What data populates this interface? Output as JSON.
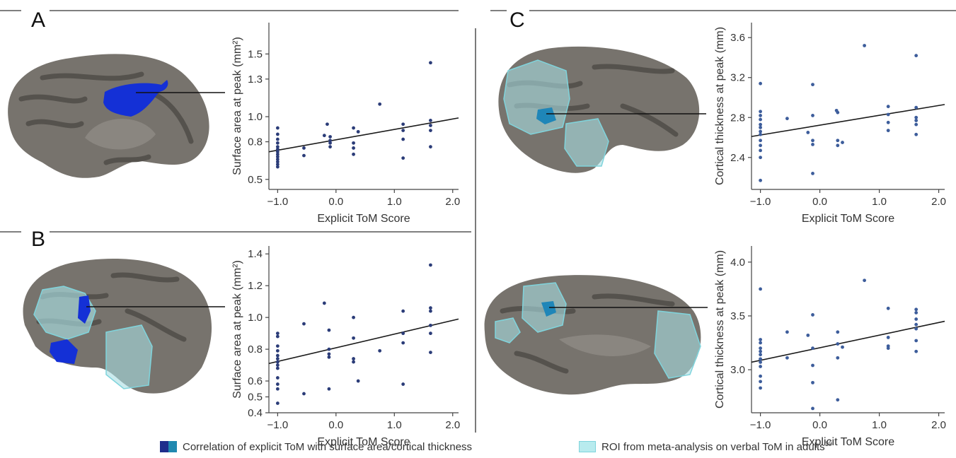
{
  "panels": {
    "a": "A",
    "b": "B",
    "c": "C"
  },
  "colors": {
    "dot": "#2b3c78",
    "dot_c": "#3d5d9b",
    "fit": "#1a1a1a",
    "brain": "#77736d",
    "brain_dark": "#55524d",
    "corr_blue": "#1430d6",
    "corr_teal": "#1f86b8",
    "roi_fill": "#a9dee2",
    "roi_edge": "#7fd4dc"
  },
  "legend": {
    "corr_label": "Correlation of explicit ToM with surface area/cortical thickness",
    "roi_label": "ROI from meta-analysis on verbal ToM in adults",
    "roi_superscript": "10",
    "corr_color_1": "#1f2e8c",
    "corr_color_2": "#2089b0",
    "roi_color": "#b8ebee"
  },
  "chart_data": [
    {
      "id": "A",
      "type": "scatter",
      "xlabel": "Explicit ToM Score",
      "ylabel": "Surface area at peak (mm²)",
      "xlim": [
        -1.15,
        2.1
      ],
      "ylim": [
        0.42,
        1.75
      ],
      "xticks": [
        -1.0,
        0.0,
        1.0,
        2.0
      ],
      "xtick_labels": [
        "−1.0",
        "0.0",
        "1.0",
        "2.0"
      ],
      "yticks": [
        0.5,
        0.8,
        1.0,
        1.3,
        1.5
      ],
      "ytick_labels": [
        "0.5",
        "0.8",
        "1.0",
        "1.3",
        "1.5"
      ],
      "fit": {
        "x": [
          -1.15,
          2.1
        ],
        "y": [
          0.72,
          0.99
        ]
      },
      "points": [
        [
          -1.0,
          0.91
        ],
        [
          -1.0,
          0.86
        ],
        [
          -1.0,
          0.82
        ],
        [
          -1.0,
          0.79
        ],
        [
          -1.0,
          0.76
        ],
        [
          -1.0,
          0.74
        ],
        [
          -1.0,
          0.72
        ],
        [
          -1.0,
          0.7
        ],
        [
          -1.0,
          0.68
        ],
        [
          -1.0,
          0.66
        ],
        [
          -1.0,
          0.64
        ],
        [
          -1.0,
          0.62
        ],
        [
          -1.0,
          0.6
        ],
        [
          -0.55,
          0.75
        ],
        [
          -0.55,
          0.69
        ],
        [
          -0.2,
          0.85
        ],
        [
          -0.15,
          0.94
        ],
        [
          -0.1,
          0.84
        ],
        [
          -0.1,
          0.81
        ],
        [
          -0.1,
          0.79
        ],
        [
          -0.1,
          0.76
        ],
        [
          0.3,
          0.91
        ],
        [
          0.3,
          0.79
        ],
        [
          0.3,
          0.75
        ],
        [
          0.3,
          0.7
        ],
        [
          0.38,
          0.88
        ],
        [
          0.75,
          1.1
        ],
        [
          1.15,
          0.94
        ],
        [
          1.15,
          0.89
        ],
        [
          1.15,
          0.82
        ],
        [
          1.15,
          0.67
        ],
        [
          1.62,
          1.43
        ],
        [
          1.62,
          0.97
        ],
        [
          1.62,
          0.93
        ],
        [
          1.62,
          0.89
        ],
        [
          1.62,
          0.76
        ]
      ]
    },
    {
      "id": "B",
      "type": "scatter",
      "xlabel": "Explicit ToM Score",
      "ylabel": "Surface area at peak (mm²)",
      "xlim": [
        -1.15,
        2.1
      ],
      "ylim": [
        0.4,
        1.45
      ],
      "xticks": [
        -1.0,
        0.0,
        1.0,
        2.0
      ],
      "xtick_labels": [
        "−1.0",
        "0.0",
        "1.0",
        "2.0"
      ],
      "yticks": [
        0.4,
        0.5,
        0.6,
        0.8,
        1.0,
        1.2,
        1.4
      ],
      "ytick_labels": [
        "0.4",
        "0.5",
        "0.6",
        "0.8",
        "1.0",
        "1.2",
        "1.4"
      ],
      "fit": {
        "x": [
          -1.15,
          2.1
        ],
        "y": [
          0.71,
          0.99
        ]
      },
      "points": [
        [
          -1.0,
          0.9
        ],
        [
          -1.0,
          0.88
        ],
        [
          -1.0,
          0.82
        ],
        [
          -1.0,
          0.79
        ],
        [
          -1.0,
          0.76
        ],
        [
          -1.0,
          0.74
        ],
        [
          -1.0,
          0.72
        ],
        [
          -1.0,
          0.7
        ],
        [
          -1.0,
          0.68
        ],
        [
          -1.0,
          0.62
        ],
        [
          -1.0,
          0.58
        ],
        [
          -1.0,
          0.55
        ],
        [
          -1.0,
          0.46
        ],
        [
          -0.55,
          0.96
        ],
        [
          -0.55,
          0.52
        ],
        [
          -0.2,
          1.09
        ],
        [
          -0.12,
          0.92
        ],
        [
          -0.12,
          0.8
        ],
        [
          -0.12,
          0.77
        ],
        [
          -0.12,
          0.75
        ],
        [
          -0.12,
          0.55
        ],
        [
          0.3,
          1.0
        ],
        [
          0.3,
          0.87
        ],
        [
          0.3,
          0.74
        ],
        [
          0.3,
          0.72
        ],
        [
          0.38,
          0.6
        ],
        [
          0.75,
          0.79
        ],
        [
          1.15,
          1.04
        ],
        [
          1.15,
          0.9
        ],
        [
          1.15,
          0.84
        ],
        [
          1.15,
          0.58
        ],
        [
          1.62,
          1.33
        ],
        [
          1.62,
          1.06
        ],
        [
          1.62,
          1.04
        ],
        [
          1.62,
          0.95
        ],
        [
          1.62,
          0.9
        ],
        [
          1.62,
          0.78
        ]
      ]
    },
    {
      "id": "C-top",
      "type": "scatter",
      "xlabel": "Explicit ToM Score",
      "ylabel": "Cortical thickness at peak (mm)",
      "xlim": [
        -1.15,
        2.1
      ],
      "ylim": [
        2.08,
        3.75
      ],
      "xticks": [
        -1.0,
        0.0,
        1.0,
        2.0
      ],
      "xtick_labels": [
        "−1.0",
        "0.0",
        "1.0",
        "2.0"
      ],
      "yticks": [
        2.4,
        2.8,
        3.2,
        3.6
      ],
      "ytick_labels": [
        "2.4",
        "2.8",
        "3.2",
        "3.6"
      ],
      "fit": {
        "x": [
          -1.15,
          2.1
        ],
        "y": [
          2.61,
          2.93
        ]
      },
      "points": [
        [
          -1.0,
          3.14
        ],
        [
          -1.0,
          2.86
        ],
        [
          -1.0,
          2.82
        ],
        [
          -1.0,
          2.78
        ],
        [
          -1.0,
          2.73
        ],
        [
          -1.0,
          2.7
        ],
        [
          -1.0,
          2.66
        ],
        [
          -1.0,
          2.63
        ],
        [
          -1.0,
          2.57
        ],
        [
          -1.0,
          2.52
        ],
        [
          -1.0,
          2.47
        ],
        [
          -1.0,
          2.4
        ],
        [
          -1.0,
          2.17
        ],
        [
          -0.55,
          2.79
        ],
        [
          -0.2,
          2.65
        ],
        [
          -0.12,
          3.13
        ],
        [
          -0.12,
          2.82
        ],
        [
          -0.12,
          2.57
        ],
        [
          -0.12,
          2.53
        ],
        [
          -0.12,
          2.24
        ],
        [
          0.28,
          2.87
        ],
        [
          0.3,
          2.85
        ],
        [
          0.3,
          2.57
        ],
        [
          0.3,
          2.52
        ],
        [
          0.38,
          2.55
        ],
        [
          0.75,
          3.52
        ],
        [
          1.15,
          2.91
        ],
        [
          1.15,
          2.83
        ],
        [
          1.15,
          2.75
        ],
        [
          1.15,
          2.67
        ],
        [
          1.62,
          3.42
        ],
        [
          1.62,
          2.9
        ],
        [
          1.62,
          2.8
        ],
        [
          1.62,
          2.77
        ],
        [
          1.62,
          2.73
        ],
        [
          1.62,
          2.63
        ]
      ]
    },
    {
      "id": "C-bottom",
      "type": "scatter",
      "xlabel": "Explicit ToM Score",
      "ylabel": "Cortical thickness at peak (mm)",
      "xlim": [
        -1.15,
        2.1
      ],
      "ylim": [
        2.6,
        4.15
      ],
      "xticks": [
        -1.0,
        0.0,
        1.0,
        2.0
      ],
      "xtick_labels": [
        "−1.0",
        "0.0",
        "1.0",
        "2.0"
      ],
      "yticks": [
        3.0,
        3.5,
        4.0
      ],
      "ytick_labels": [
        "3.0",
        "3.5",
        "4.0"
      ],
      "fit": {
        "x": [
          -1.15,
          2.1
        ],
        "y": [
          3.07,
          3.45
        ]
      },
      "points": [
        [
          -1.0,
          3.75
        ],
        [
          -1.0,
          3.28
        ],
        [
          -1.0,
          3.25
        ],
        [
          -1.0,
          3.2
        ],
        [
          -1.0,
          3.17
        ],
        [
          -1.0,
          3.14
        ],
        [
          -1.0,
          3.1
        ],
        [
          -1.0,
          3.07
        ],
        [
          -1.0,
          3.03
        ],
        [
          -1.0,
          2.94
        ],
        [
          -1.0,
          2.89
        ],
        [
          -1.0,
          2.83
        ],
        [
          -0.55,
          3.35
        ],
        [
          -0.55,
          3.11
        ],
        [
          -0.2,
          3.32
        ],
        [
          -0.12,
          3.51
        ],
        [
          -0.12,
          3.2
        ],
        [
          -0.12,
          3.04
        ],
        [
          -0.12,
          2.88
        ],
        [
          -0.12,
          2.64
        ],
        [
          0.3,
          3.35
        ],
        [
          0.3,
          3.24
        ],
        [
          0.3,
          3.11
        ],
        [
          0.3,
          2.72
        ],
        [
          0.38,
          3.21
        ],
        [
          0.75,
          3.83
        ],
        [
          1.15,
          3.57
        ],
        [
          1.15,
          3.3
        ],
        [
          1.15,
          3.22
        ],
        [
          1.15,
          3.2
        ],
        [
          1.62,
          3.56
        ],
        [
          1.62,
          3.53
        ],
        [
          1.62,
          3.47
        ],
        [
          1.62,
          3.42
        ],
        [
          1.62,
          3.38
        ],
        [
          1.62,
          3.27
        ],
        [
          1.62,
          3.17
        ]
      ]
    }
  ]
}
